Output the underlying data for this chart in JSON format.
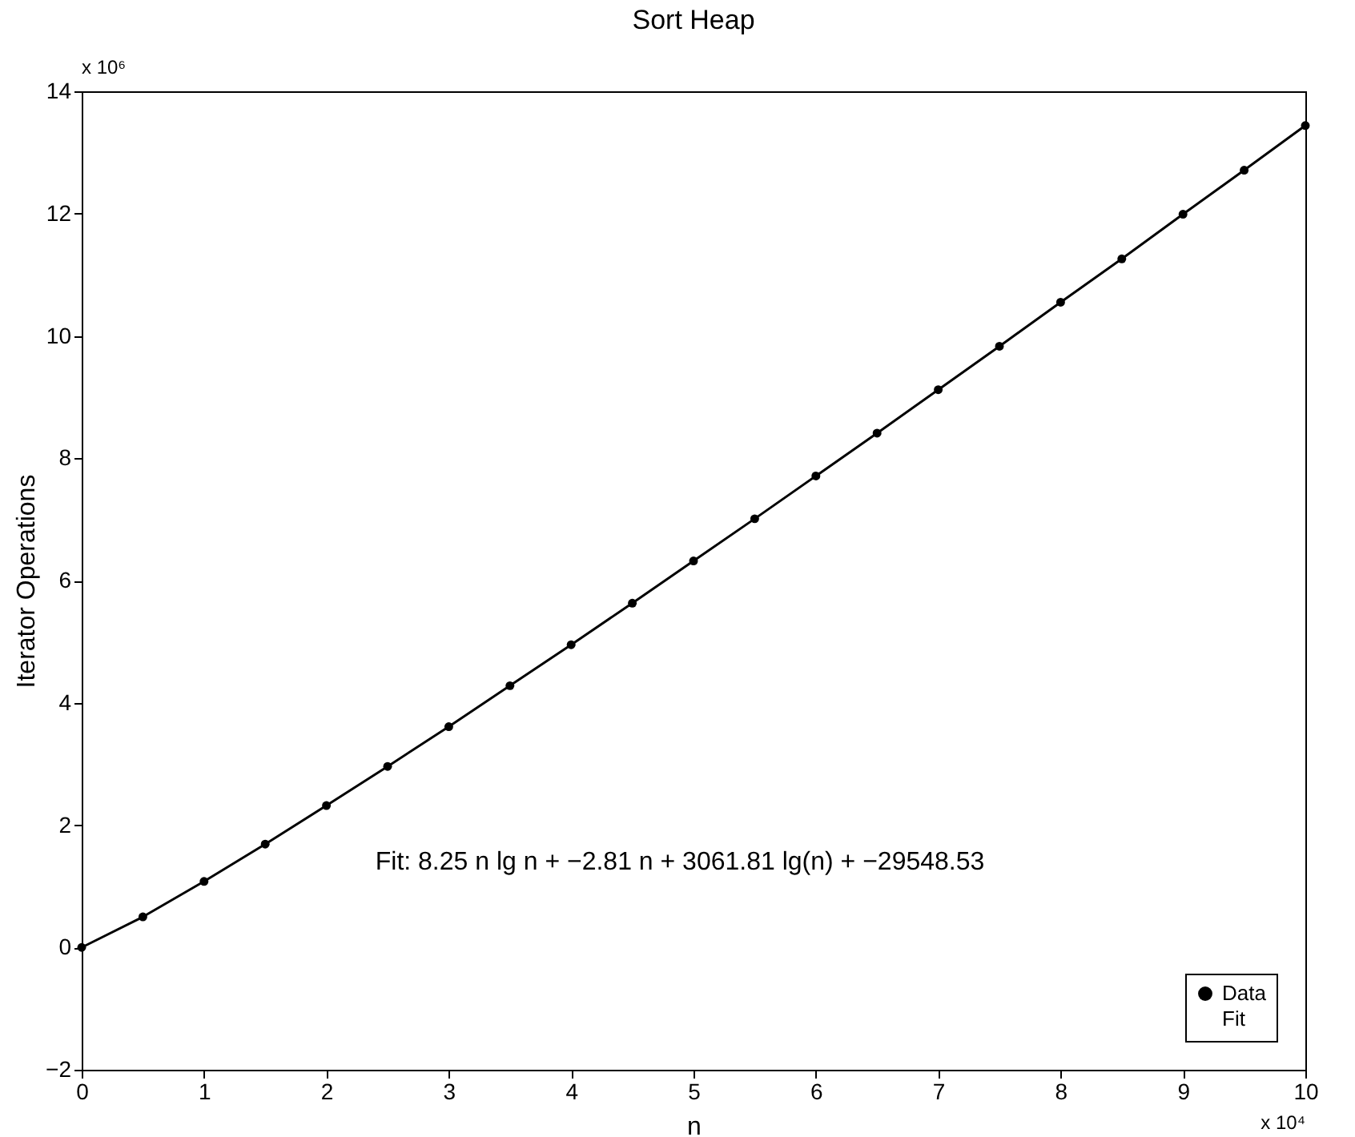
{
  "chart_data": {
    "type": "scatter",
    "title": "Sort Heap",
    "xlabel": "n",
    "ylabel": "Iterator Operations",
    "x": [
      0,
      0.5,
      1,
      1.5,
      2,
      2.5,
      3,
      3.5,
      4,
      4.5,
      5,
      5.5,
      6,
      6.5,
      7,
      7.5,
      8,
      8.5,
      9,
      9.5,
      10
    ],
    "series": [
      {
        "name": "Data",
        "color": "#000000",
        "marker": "circle",
        "values": [
          0,
          0.5,
          1.08,
          1.69,
          2.32,
          2.96,
          3.61,
          4.28,
          4.95,
          5.63,
          6.32,
          7.01,
          7.71,
          8.41,
          9.12,
          9.83,
          10.55,
          11.26,
          11.99,
          12.71,
          13.44
        ]
      },
      {
        "name": "Fit",
        "type": "line",
        "color": "#000000",
        "line_style": "solid",
        "values": [
          0,
          0.5,
          1.08,
          1.69,
          2.32,
          2.96,
          3.61,
          4.28,
          4.95,
          5.63,
          6.32,
          7.01,
          7.71,
          8.41,
          9.12,
          9.83,
          10.55,
          11.26,
          11.99,
          12.71,
          13.44
        ]
      }
    ],
    "xlim": [
      0,
      10
    ],
    "xticks": [
      0,
      1,
      2,
      3,
      4,
      5,
      6,
      7,
      8,
      9,
      10
    ],
    "ylim": [
      -2,
      14
    ],
    "yticks": [
      -2,
      0,
      2,
      4,
      6,
      8,
      10,
      12,
      14
    ],
    "grid": false,
    "legend": "bottom right",
    "annotations": [
      "x 10⁶",
      "x 10⁴",
      "Fit: 8.25 n lg n + −2.81 n + 3061.81 lg(n) + −29548.53"
    ]
  }
}
